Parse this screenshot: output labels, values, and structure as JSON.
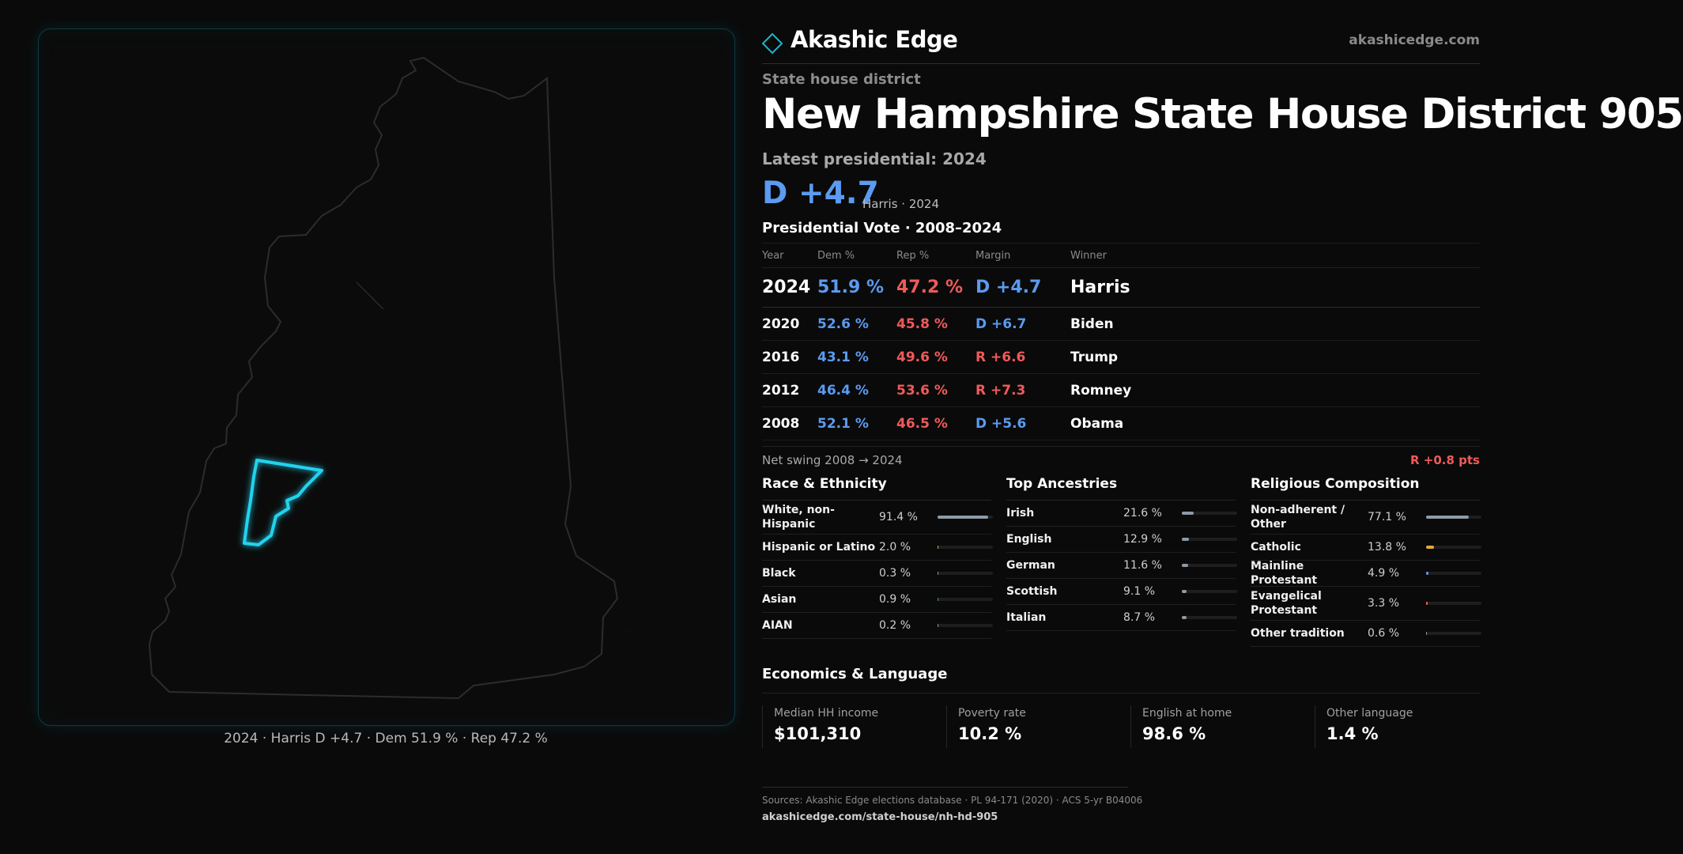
{
  "brand": {
    "name": "Akashic Edge",
    "url": "akashicedge.com"
  },
  "district": {
    "kicker": "State house district",
    "title": "New Hampshire State House District 905",
    "latest_label": "Latest presidential: 2024",
    "margin_big": "D +4.7",
    "margin_sub": "Harris · 2024"
  },
  "map": {
    "caption": "2024 · Harris D +4.7 · Dem 51.9 % · Rep 47.2 %",
    "highlight_color": "#22d3ee",
    "state_outline_color": "#2c2c2c"
  },
  "presidential": {
    "title": "Presidential Vote · 2008–2024",
    "columns": [
      "Year",
      "Dem %",
      "Rep %",
      "Margin",
      "Winner"
    ],
    "rows": [
      {
        "year": "2024",
        "dem": "51.9 %",
        "rep": "47.2 %",
        "margin": "D +4.7",
        "winner": "Harris",
        "party": "dem"
      },
      {
        "year": "2020",
        "dem": "52.6 %",
        "rep": "45.8 %",
        "margin": "D +6.7",
        "winner": "Biden",
        "party": "dem"
      },
      {
        "year": "2016",
        "dem": "43.1 %",
        "rep": "49.6 %",
        "margin": "R +6.6",
        "winner": "Trump",
        "party": "rep"
      },
      {
        "year": "2012",
        "dem": "46.4 %",
        "rep": "53.6 %",
        "margin": "R +7.3",
        "winner": "Romney",
        "party": "rep"
      },
      {
        "year": "2008",
        "dem": "52.1 %",
        "rep": "46.5 %",
        "margin": "D +5.6",
        "winner": "Obama",
        "party": "dem"
      }
    ],
    "swing_label": "Net swing 2008 → 2024",
    "swing_value": "R +0.8 pts"
  },
  "race": {
    "title": "Race & Ethnicity",
    "items": [
      {
        "label": "White, non-Hispanic",
        "value": "91.4 %",
        "share": 0.914,
        "color": "#8e9aa6"
      },
      {
        "label": "Hispanic or Latino",
        "value": "2.0 %",
        "share": 0.02,
        "color": "#e2a83a"
      },
      {
        "label": "Black",
        "value": "0.3 %",
        "share": 0.003,
        "color": "#8e9aa6"
      },
      {
        "label": "Asian",
        "value": "0.9 %",
        "share": 0.009,
        "color": "#3aa87a"
      },
      {
        "label": "AIAN",
        "value": "0.2 %",
        "share": 0.002,
        "color": "#8e9aa6"
      }
    ]
  },
  "ancestry": {
    "title": "Top Ancestries",
    "items": [
      {
        "label": "Irish",
        "value": "21.6 %",
        "share": 0.216,
        "color": "#8e9aa6"
      },
      {
        "label": "English",
        "value": "12.9 %",
        "share": 0.129,
        "color": "#8e9aa6"
      },
      {
        "label": "German",
        "value": "11.6 %",
        "share": 0.116,
        "color": "#8e9aa6"
      },
      {
        "label": "Scottish",
        "value": "9.1 %",
        "share": 0.091,
        "color": "#8e9aa6"
      },
      {
        "label": "Italian",
        "value": "8.7 %",
        "share": 0.087,
        "color": "#8e9aa6"
      }
    ]
  },
  "religion": {
    "title": "Religious Composition",
    "items": [
      {
        "label": "Non-adherent / Other",
        "value": "77.1 %",
        "share": 0.771,
        "color": "#8e9aa6"
      },
      {
        "label": "Catholic",
        "value": "13.8 %",
        "share": 0.138,
        "color": "#e2a83a"
      },
      {
        "label": "Mainline Protestant",
        "value": "4.9 %",
        "share": 0.049,
        "color": "#5b9bf0"
      },
      {
        "label": "Evangelical Protestant",
        "value": "3.3 %",
        "share": 0.033,
        "color": "#f05a5a"
      },
      {
        "label": "Other tradition",
        "value": "0.6 %",
        "share": 0.006,
        "color": "#8e9aa6"
      }
    ]
  },
  "economics": {
    "title": "Economics & Language",
    "items": [
      {
        "label": "Median HH income",
        "value": "$101,310"
      },
      {
        "label": "Poverty rate",
        "value": "10.2 %"
      },
      {
        "label": "English at home",
        "value": "98.6 %"
      },
      {
        "label": "Other language",
        "value": "1.4 %"
      }
    ]
  },
  "sources": {
    "text": "Sources: Akashic Edge elections database · PL 94-171 (2020) · ACS 5-yr B04006",
    "url": "akashicedge.com/state-house/nh-hd-905"
  }
}
